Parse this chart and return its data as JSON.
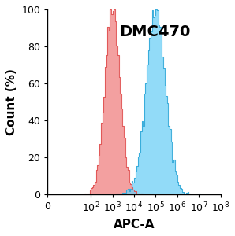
{
  "title": "DMC470",
  "xlabel": "APC-A",
  "ylabel": "Count (%)",
  "xlim_log": [
    0,
    8
  ],
  "ylim": [
    0,
    100
  ],
  "yticks": [
    0,
    20,
    40,
    60,
    80,
    100
  ],
  "red_fill_color": "#F08080",
  "red_edge_color": "#E05050",
  "blue_fill_color": "#6ECFF6",
  "blue_edge_color": "#30A8D8",
  "red_alpha": 0.75,
  "blue_alpha": 0.75,
  "background_color": "#ffffff",
  "title_fontsize": 14,
  "axis_label_fontsize": 11,
  "tick_fontsize": 9
}
